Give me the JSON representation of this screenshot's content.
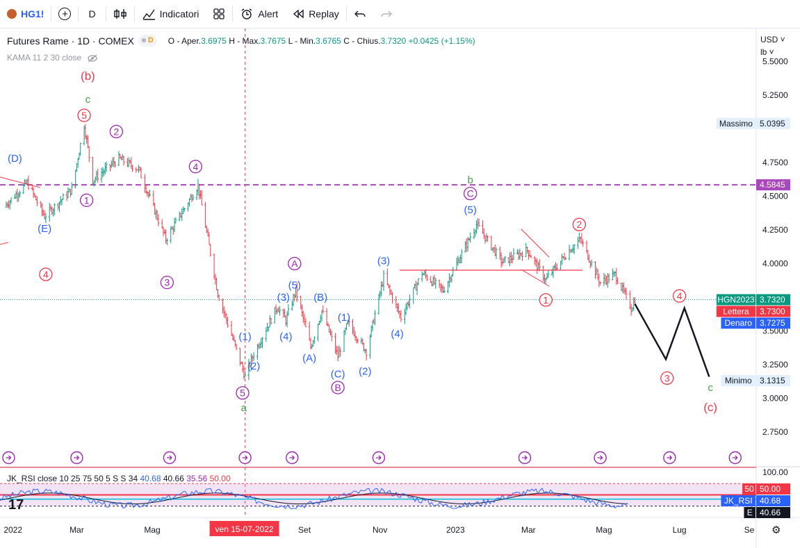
{
  "toolbar": {
    "symbol": "HG1!",
    "add_symbol_icon": "plus-circle-icon",
    "interval": "D",
    "bar_style_icon": "candles-icon",
    "indicators_label": "Indicatori",
    "layouts_icon": "grid-icon",
    "alert_label": "Alert",
    "replay_label": "Replay",
    "undo_icon": "undo-icon",
    "redo_icon": "redo-icon"
  },
  "legend": {
    "title": "Futures Rame · 1D · COMEX",
    "badge_letter": "D",
    "open_label": "O - Aper.",
    "open": "3.6975",
    "high_label": "H - Max.",
    "high": "3.7675",
    "low_label": "L - Min.",
    "low": "3.6765",
    "close_label": "C - Chius.",
    "close": "3.7320",
    "change": "+0.0425 (+1.15%)",
    "indicator": "KAMA 11 2 30 close",
    "indicator_icon": "eye-off-icon"
  },
  "scale": {
    "currency": "USD ˅",
    "unit": "lb ˅",
    "settings_icon": "gear-icon"
  },
  "rsi_legend": {
    "label": "JK_RSI close 10 25 75 50 5 S S 34",
    "v1": "40.68",
    "v2": "40.66",
    "v3": "35.56",
    "v4": "50.00"
  },
  "chart_data": {
    "type": "candlestick",
    "symbol": "HGN2023",
    "ylim": [
      2.5,
      5.6
    ],
    "y_ticks": [
      "5.5000",
      "5.2500",
      "4.7500",
      "4.5000",
      "4.2500",
      "4.0000",
      "3.5000",
      "3.2500",
      "3.0000",
      "2.7500"
    ],
    "x_ticks": [
      "2022",
      "Mar",
      "Mag",
      "Set",
      "Nov",
      "2023",
      "Mar",
      "Mag",
      "Lug",
      "Se"
    ],
    "crosshair_date": "ven 15-07-2022",
    "price_key_points": [
      {
        "date": "2022-01-01",
        "price": 4.42
      },
      {
        "date": "2022-01-20",
        "price": 4.6
      },
      {
        "date": "2022-02-03",
        "price": 4.35
      },
      {
        "date": "2022-02-25",
        "price": 4.55
      },
      {
        "date": "2022-03-07",
        "price": 5.03
      },
      {
        "date": "2022-03-14",
        "price": 4.62
      },
      {
        "date": "2022-04-04",
        "price": 4.78
      },
      {
        "date": "2022-04-20",
        "price": 4.7
      },
      {
        "date": "2022-05-12",
        "price": 4.18
      },
      {
        "date": "2022-06-07",
        "price": 4.58
      },
      {
        "date": "2022-06-23",
        "price": 3.78
      },
      {
        "date": "2022-07-15",
        "price": 3.16
      },
      {
        "date": "2022-07-22",
        "price": 3.33
      },
      {
        "date": "2022-08-10",
        "price": 3.68
      },
      {
        "date": "2022-08-17",
        "price": 3.58
      },
      {
        "date": "2022-08-25",
        "price": 3.8
      },
      {
        "date": "2022-09-06",
        "price": 3.38
      },
      {
        "date": "2022-09-15",
        "price": 3.65
      },
      {
        "date": "2022-09-28",
        "price": 3.31
      },
      {
        "date": "2022-10-06",
        "price": 3.56
      },
      {
        "date": "2022-10-21",
        "price": 3.35
      },
      {
        "date": "2022-11-04",
        "price": 3.9
      },
      {
        "date": "2022-11-18",
        "price": 3.6
      },
      {
        "date": "2022-12-05",
        "price": 3.93
      },
      {
        "date": "2022-12-22",
        "price": 3.8
      },
      {
        "date": "2023-01-18",
        "price": 4.29
      },
      {
        "date": "2023-02-08",
        "price": 4.01
      },
      {
        "date": "2023-02-28",
        "price": 4.1
      },
      {
        "date": "2023-03-15",
        "price": 3.88
      },
      {
        "date": "2023-04-03",
        "price": 4.1
      },
      {
        "date": "2023-04-12",
        "price": 4.18
      },
      {
        "date": "2023-04-28",
        "price": 3.86
      },
      {
        "date": "2023-05-10",
        "price": 3.92
      },
      {
        "date": "2023-05-23",
        "price": 3.67
      },
      {
        "date": "2023-05-26",
        "price": 3.73
      }
    ],
    "projection": [
      {
        "date": "2023-05-26",
        "price": 3.7
      },
      {
        "date": "2023-06-20",
        "price": 3.29
      },
      {
        "date": "2023-07-05",
        "price": 3.67
      },
      {
        "date": "2023-07-25",
        "price": 3.16
      }
    ],
    "hlines": [
      {
        "price": 4.5845,
        "style": "dashed",
        "color": "#ab47bc"
      },
      {
        "price": 3.732,
        "style": "dotted",
        "color": "#089981"
      }
    ],
    "price_labels": [
      {
        "name": "Massimo",
        "value": "5.0395",
        "price": 5.0395,
        "color": "#e3effd",
        "text_color": "#131722"
      },
      {
        "name": "",
        "value": "4.5845",
        "price": 4.5845,
        "color": "#ab47bc",
        "text_color": "#ffffff"
      },
      {
        "name": "HGN2023",
        "value": "3.7320",
        "price": 3.732,
        "color": "#089981",
        "text_color": "#ffffff"
      },
      {
        "name": "Lettera",
        "value": "3.7300",
        "price": 3.645,
        "color": "#f23645",
        "text_color": "#ffffff"
      },
      {
        "name": "Denaro",
        "value": "3.7275",
        "price": 3.558,
        "color": "#2962ff",
        "text_color": "#ffffff"
      },
      {
        "name": "Minimo",
        "value": "3.1315",
        "price": 3.1315,
        "color": "#e3effd",
        "text_color": "#131722"
      }
    ],
    "annotations": [
      {
        "text": "(b)",
        "date": "2022-03-10",
        "price": 5.39,
        "color": "#f23645",
        "circle": false,
        "size": 17
      },
      {
        "text": "c",
        "date": "2022-03-10",
        "price": 5.22,
        "color": "#43a047",
        "circle": false,
        "size": 15
      },
      {
        "text": "5",
        "date": "2022-03-07",
        "price": 5.1,
        "color": "#f23645",
        "circle": true,
        "size": 14
      },
      {
        "text": "2",
        "date": "2022-04-02",
        "price": 4.98,
        "color": "#9c27b0",
        "circle": true,
        "size": 14
      },
      {
        "text": "(D)",
        "date": "2022-01-10",
        "price": 4.78,
        "color": "#2962ff",
        "circle": false,
        "size": 15
      },
      {
        "text": "1",
        "date": "2022-03-09",
        "price": 4.47,
        "color": "#9c27b0",
        "circle": true,
        "size": 14
      },
      {
        "text": "4",
        "date": "2022-06-05",
        "price": 4.72,
        "color": "#9c27b0",
        "circle": true,
        "size": 14
      },
      {
        "text": "(E)",
        "date": "2022-02-03",
        "price": 4.26,
        "color": "#2962ff",
        "circle": false,
        "size": 15
      },
      {
        "text": "4",
        "date": "2022-02-04",
        "price": 3.92,
        "color": "#f23645",
        "circle": true,
        "size": 14
      },
      {
        "text": "3",
        "date": "2022-05-13",
        "price": 3.86,
        "color": "#9c27b0",
        "circle": true,
        "size": 14
      },
      {
        "text": "(1)",
        "date": "2022-07-15",
        "price": 3.46,
        "color": "#2962ff",
        "circle": false,
        "size": 15
      },
      {
        "text": "(2)",
        "date": "2022-07-22",
        "price": 3.24,
        "color": "#2962ff",
        "circle": false,
        "size": 15
      },
      {
        "text": "5",
        "date": "2022-07-13",
        "price": 3.04,
        "color": "#9c27b0",
        "circle": true,
        "size": 14
      },
      {
        "text": "a",
        "date": "2022-07-14",
        "price": 2.93,
        "color": "#43a047",
        "circle": false,
        "size": 15
      },
      {
        "text": "(3)",
        "date": "2022-08-15",
        "price": 3.75,
        "color": "#2962ff",
        "circle": false,
        "size": 15
      },
      {
        "text": "(5)",
        "date": "2022-08-24",
        "price": 3.84,
        "color": "#2962ff",
        "circle": false,
        "size": 15
      },
      {
        "text": "A",
        "date": "2022-08-24",
        "price": 4.0,
        "color": "#9c27b0",
        "circle": true,
        "size": 14
      },
      {
        "text": "(4)",
        "date": "2022-08-17",
        "price": 3.46,
        "color": "#2962ff",
        "circle": false,
        "size": 15
      },
      {
        "text": "(B)",
        "date": "2022-09-14",
        "price": 3.75,
        "color": "#2962ff",
        "circle": false,
        "size": 15
      },
      {
        "text": "(1)",
        "date": "2022-10-03",
        "price": 3.6,
        "color": "#2962ff",
        "circle": false,
        "size": 15
      },
      {
        "text": "(A)",
        "date": "2022-09-05",
        "price": 3.3,
        "color": "#2962ff",
        "circle": false,
        "size": 15
      },
      {
        "text": "(C)",
        "date": "2022-09-28",
        "price": 3.18,
        "color": "#2962ff",
        "circle": false,
        "size": 15
      },
      {
        "text": "B",
        "date": "2022-09-28",
        "price": 3.08,
        "color": "#9c27b0",
        "circle": true,
        "size": 14
      },
      {
        "text": "(2)",
        "date": "2022-10-20",
        "price": 3.2,
        "color": "#2962ff",
        "circle": false,
        "size": 15
      },
      {
        "text": "(3)",
        "date": "2022-11-04",
        "price": 4.02,
        "color": "#2962ff",
        "circle": false,
        "size": 15
      },
      {
        "text": "(4)",
        "date": "2022-11-15",
        "price": 3.48,
        "color": "#2962ff",
        "circle": false,
        "size": 15
      },
      {
        "text": "b",
        "date": "2023-01-13",
        "price": 4.62,
        "color": "#43a047",
        "circle": false,
        "size": 15
      },
      {
        "text": "C",
        "date": "2023-01-13",
        "price": 4.52,
        "color": "#9c27b0",
        "circle": true,
        "size": 14
      },
      {
        "text": "(5)",
        "date": "2023-01-13",
        "price": 4.4,
        "color": "#2962ff",
        "circle": false,
        "size": 15
      },
      {
        "text": "2",
        "date": "2023-04-11",
        "price": 4.29,
        "color": "#f23645",
        "circle": true,
        "size": 14
      },
      {
        "text": "1",
        "date": "2023-03-15",
        "price": 3.73,
        "color": "#f23645",
        "circle": true,
        "size": 14
      },
      {
        "text": "4",
        "date": "2023-07-01",
        "price": 3.76,
        "color": "#f23645",
        "circle": true,
        "size": 14
      },
      {
        "text": "3",
        "date": "2023-06-21",
        "price": 3.15,
        "color": "#f23645",
        "circle": true,
        "size": 14
      },
      {
        "text": "c",
        "date": "2023-07-26",
        "price": 3.08,
        "color": "#43a047",
        "circle": false,
        "size": 15
      },
      {
        "text": "(c)",
        "date": "2023-07-26",
        "price": 2.93,
        "color": "#f23645",
        "circle": false,
        "size": 17
      }
    ],
    "event_icon": "arrow-circle-icon",
    "event_markers": [
      "2022-01-05",
      "2022-03-01",
      "2022-05-15",
      "2022-07-15",
      "2022-08-22",
      "2022-10-31",
      "2023-02-26",
      "2023-04-28",
      "2023-06-23",
      "2023-08-15"
    ],
    "rsi_ylim": [
      0,
      100
    ],
    "rsi_labels": [
      {
        "name": "",
        "value": "50.00",
        "color": "#f23645",
        "text_color": "#ffffff"
      },
      {
        "name": "JK_RSI",
        "value": "40.68",
        "color": "#2962ff",
        "text_color": "#ffffff"
      },
      {
        "name": "E",
        "value": "40.66",
        "color": "#131722",
        "text_color": "#ffffff"
      }
    ],
    "rsi_top_label": "100.00",
    "logo_text": "17"
  }
}
